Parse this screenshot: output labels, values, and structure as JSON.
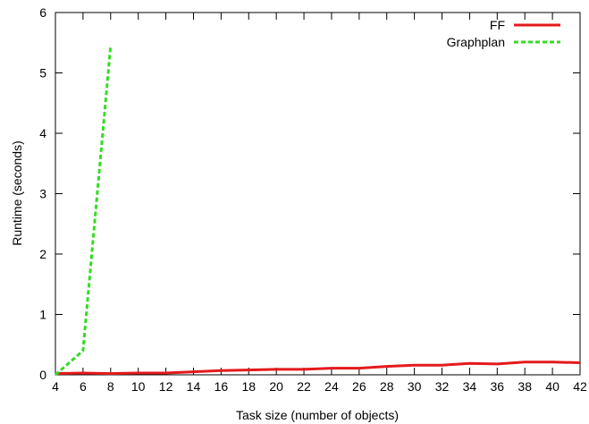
{
  "chart_data": {
    "type": "line",
    "title": "",
    "xlabel": "Task size (number of objects)",
    "ylabel": "Runtime (seconds)",
    "xlim": [
      4,
      42
    ],
    "ylim": [
      0,
      6
    ],
    "xticks": [
      4,
      6,
      8,
      10,
      12,
      14,
      16,
      18,
      20,
      22,
      24,
      26,
      28,
      30,
      32,
      34,
      36,
      38,
      40,
      42
    ],
    "yticks": [
      0,
      1,
      2,
      3,
      4,
      5,
      6
    ],
    "grid": false,
    "legend_position": "top-right",
    "series": [
      {
        "name": "FF",
        "color": "#e41a1c",
        "style": "solid",
        "x": [
          4,
          6,
          8,
          10,
          12,
          14,
          16,
          18,
          20,
          22,
          24,
          26,
          28,
          30,
          32,
          34,
          36,
          38,
          40,
          42
        ],
        "y": [
          0.02,
          0.03,
          0.02,
          0.03,
          0.03,
          0.05,
          0.07,
          0.08,
          0.09,
          0.09,
          0.11,
          0.11,
          0.14,
          0.16,
          0.16,
          0.19,
          0.18,
          0.21,
          0.21,
          0.2
        ]
      },
      {
        "name": "Graphplan",
        "color": "#33dd22",
        "style": "dashed",
        "x": [
          4,
          6,
          8
        ],
        "y": [
          0.0,
          0.4,
          5.45
        ]
      }
    ]
  }
}
